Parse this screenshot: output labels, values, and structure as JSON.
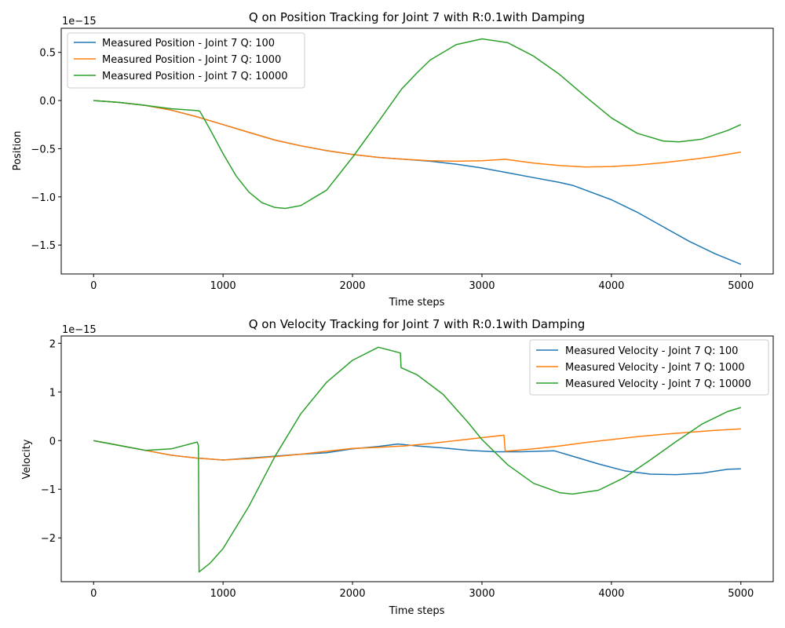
{
  "chart_data": [
    {
      "type": "line",
      "title": "Q on Position Tracking for Joint 7 with R:0.1with Damping",
      "xlabel": "Time steps",
      "ylabel": "Position",
      "y_offset_label": "1e−15",
      "xlim": [
        -250,
        5250
      ],
      "ylim": [
        -1.8,
        0.75
      ],
      "xticks": [
        0,
        1000,
        2000,
        3000,
        4000,
        5000
      ],
      "xtick_labels": [
        "0",
        "1000",
        "2000",
        "3000",
        "4000",
        "5000"
      ],
      "yticks": [
        -1.5,
        -1.0,
        -0.5,
        0.0,
        0.5
      ],
      "ytick_labels": [
        "−1.5",
        "−1.0",
        "−0.5",
        "0.0",
        "0.5"
      ],
      "grid": false,
      "legend_position": "top-left",
      "series": [
        {
          "name": "Measured Position - Joint 7 Q: 100",
          "color": "#1f77b4",
          "points": [
            [
              0,
              0.0
            ],
            [
              200,
              -0.02
            ],
            [
              400,
              -0.05
            ],
            [
              600,
              -0.1
            ],
            [
              800,
              -0.17
            ],
            [
              1000,
              -0.25
            ],
            [
              1200,
              -0.33
            ],
            [
              1400,
              -0.41
            ],
            [
              1600,
              -0.47
            ],
            [
              1800,
              -0.52
            ],
            [
              2000,
              -0.56
            ],
            [
              2200,
              -0.59
            ],
            [
              2400,
              -0.61
            ],
            [
              2600,
              -0.63
            ],
            [
              2800,
              -0.66
            ],
            [
              3000,
              -0.7
            ],
            [
              3200,
              -0.75
            ],
            [
              3400,
              -0.8
            ],
            [
              3600,
              -0.85
            ],
            [
              3700,
              -0.88
            ],
            [
              3800,
              -0.93
            ],
            [
              4000,
              -1.03
            ],
            [
              4200,
              -1.16
            ],
            [
              4400,
              -1.31
            ],
            [
              4600,
              -1.46
            ],
            [
              4800,
              -1.59
            ],
            [
              5000,
              -1.7
            ]
          ]
        },
        {
          "name": "Measured Position - Joint 7 Q: 1000",
          "color": "#ff7f0e",
          "points": [
            [
              0,
              0.0
            ],
            [
              200,
              -0.02
            ],
            [
              400,
              -0.05
            ],
            [
              600,
              -0.1
            ],
            [
              800,
              -0.17
            ],
            [
              1000,
              -0.25
            ],
            [
              1200,
              -0.33
            ],
            [
              1400,
              -0.41
            ],
            [
              1600,
              -0.47
            ],
            [
              1800,
              -0.52
            ],
            [
              2000,
              -0.56
            ],
            [
              2200,
              -0.59
            ],
            [
              2400,
              -0.61
            ],
            [
              2600,
              -0.625
            ],
            [
              2800,
              -0.63
            ],
            [
              3000,
              -0.625
            ],
            [
              3180,
              -0.61
            ],
            [
              3400,
              -0.65
            ],
            [
              3600,
              -0.675
            ],
            [
              3800,
              -0.69
            ],
            [
              4000,
              -0.685
            ],
            [
              4200,
              -0.67
            ],
            [
              4400,
              -0.645
            ],
            [
              4600,
              -0.615
            ],
            [
              4800,
              -0.58
            ],
            [
              5000,
              -0.535
            ]
          ]
        },
        {
          "name": "Measured Position - Joint 7 Q: 10000",
          "color": "#2ca02c",
          "points": [
            [
              0,
              0.0
            ],
            [
              200,
              -0.02
            ],
            [
              400,
              -0.05
            ],
            [
              600,
              -0.085
            ],
            [
              800,
              -0.105
            ],
            [
              820,
              -0.11
            ],
            [
              900,
              -0.3
            ],
            [
              1000,
              -0.55
            ],
            [
              1100,
              -0.78
            ],
            [
              1200,
              -0.95
            ],
            [
              1300,
              -1.06
            ],
            [
              1400,
              -1.11
            ],
            [
              1480,
              -1.12
            ],
            [
              1600,
              -1.09
            ],
            [
              1800,
              -0.93
            ],
            [
              2000,
              -0.59
            ],
            [
              2200,
              -0.22
            ],
            [
              2380,
              0.12
            ],
            [
              2500,
              0.29
            ],
            [
              2600,
              0.42
            ],
            [
              2800,
              0.58
            ],
            [
              3000,
              0.64
            ],
            [
              3200,
              0.6
            ],
            [
              3400,
              0.46
            ],
            [
              3600,
              0.27
            ],
            [
              3800,
              0.04
            ],
            [
              4000,
              -0.18
            ],
            [
              4200,
              -0.34
            ],
            [
              4400,
              -0.42
            ],
            [
              4520,
              -0.43
            ],
            [
              4700,
              -0.4
            ],
            [
              4900,
              -0.31
            ],
            [
              5000,
              -0.25
            ]
          ]
        }
      ]
    },
    {
      "type": "line",
      "title": "Q on Velocity Tracking for Joint 7 with R:0.1with Damping",
      "xlabel": "Time steps",
      "ylabel": "Velocity",
      "y_offset_label": "1e−15",
      "xlim": [
        -250,
        5250
      ],
      "ylim": [
        -2.9,
        2.15
      ],
      "xticks": [
        0,
        1000,
        2000,
        3000,
        4000,
        5000
      ],
      "xtick_labels": [
        "0",
        "1000",
        "2000",
        "3000",
        "4000",
        "5000"
      ],
      "yticks": [
        -2,
        -1,
        0,
        1,
        2
      ],
      "ytick_labels": [
        "−2",
        "−1",
        "0",
        "1",
        "2"
      ],
      "grid": false,
      "legend_position": "top-right",
      "series": [
        {
          "name": "Measured Velocity - Joint 7 Q: 100",
          "color": "#1f77b4",
          "points": [
            [
              0,
              0.0
            ],
            [
              200,
              -0.1
            ],
            [
              400,
              -0.2
            ],
            [
              600,
              -0.3
            ],
            [
              800,
              -0.36
            ],
            [
              1000,
              -0.4
            ],
            [
              1200,
              -0.36
            ],
            [
              1400,
              -0.32
            ],
            [
              1600,
              -0.28
            ],
            [
              1800,
              -0.25
            ],
            [
              2000,
              -0.17
            ],
            [
              2200,
              -0.12
            ],
            [
              2350,
              -0.07
            ],
            [
              2500,
              -0.11
            ],
            [
              2700,
              -0.15
            ],
            [
              2900,
              -0.2
            ],
            [
              3100,
              -0.23
            ],
            [
              3300,
              -0.23
            ],
            [
              3560,
              -0.21
            ],
            [
              3700,
              -0.32
            ],
            [
              3900,
              -0.48
            ],
            [
              4100,
              -0.62
            ],
            [
              4300,
              -0.69
            ],
            [
              4500,
              -0.7
            ],
            [
              4700,
              -0.67
            ],
            [
              4900,
              -0.59
            ],
            [
              5000,
              -0.58
            ]
          ]
        },
        {
          "name": "Measured Velocity - Joint 7 Q: 1000",
          "color": "#ff7f0e",
          "points": [
            [
              0,
              0.0
            ],
            [
              200,
              -0.1
            ],
            [
              400,
              -0.2
            ],
            [
              600,
              -0.3
            ],
            [
              800,
              -0.36
            ],
            [
              1000,
              -0.4
            ],
            [
              1200,
              -0.37
            ],
            [
              1400,
              -0.33
            ],
            [
              1600,
              -0.28
            ],
            [
              1800,
              -0.22
            ],
            [
              2000,
              -0.16
            ],
            [
              2200,
              -0.14
            ],
            [
              2400,
              -0.11
            ],
            [
              2600,
              -0.06
            ],
            [
              2800,
              0.0
            ],
            [
              3000,
              0.06
            ],
            [
              3170,
              0.11
            ],
            [
              3180,
              -0.22
            ],
            [
              3400,
              -0.17
            ],
            [
              3600,
              -0.11
            ],
            [
              3800,
              -0.04
            ],
            [
              4000,
              0.02
            ],
            [
              4200,
              0.08
            ],
            [
              4400,
              0.13
            ],
            [
              4600,
              0.17
            ],
            [
              4800,
              0.21
            ],
            [
              5000,
              0.24
            ]
          ]
        },
        {
          "name": "Measured Velocity - Joint 7 Q: 10000",
          "color": "#2ca02c",
          "points": [
            [
              0,
              0.0
            ],
            [
              200,
              -0.1
            ],
            [
              400,
              -0.2
            ],
            [
              600,
              -0.17
            ],
            [
              800,
              -0.03
            ],
            [
              810,
              -0.1
            ],
            [
              815,
              -2.7
            ],
            [
              900,
              -2.52
            ],
            [
              1000,
              -2.22
            ],
            [
              1200,
              -1.35
            ],
            [
              1400,
              -0.33
            ],
            [
              1600,
              0.55
            ],
            [
              1800,
              1.2
            ],
            [
              2000,
              1.65
            ],
            [
              2200,
              1.92
            ],
            [
              2370,
              1.8
            ],
            [
              2375,
              1.5
            ],
            [
              2500,
              1.35
            ],
            [
              2700,
              0.95
            ],
            [
              2900,
              0.35
            ],
            [
              3000,
              0.02
            ],
            [
              3200,
              -0.5
            ],
            [
              3400,
              -0.88
            ],
            [
              3600,
              -1.07
            ],
            [
              3700,
              -1.1
            ],
            [
              3900,
              -1.02
            ],
            [
              4100,
              -0.76
            ],
            [
              4300,
              -0.4
            ],
            [
              4500,
              -0.02
            ],
            [
              4700,
              0.34
            ],
            [
              4900,
              0.6
            ],
            [
              5000,
              0.68
            ]
          ]
        }
      ]
    }
  ]
}
